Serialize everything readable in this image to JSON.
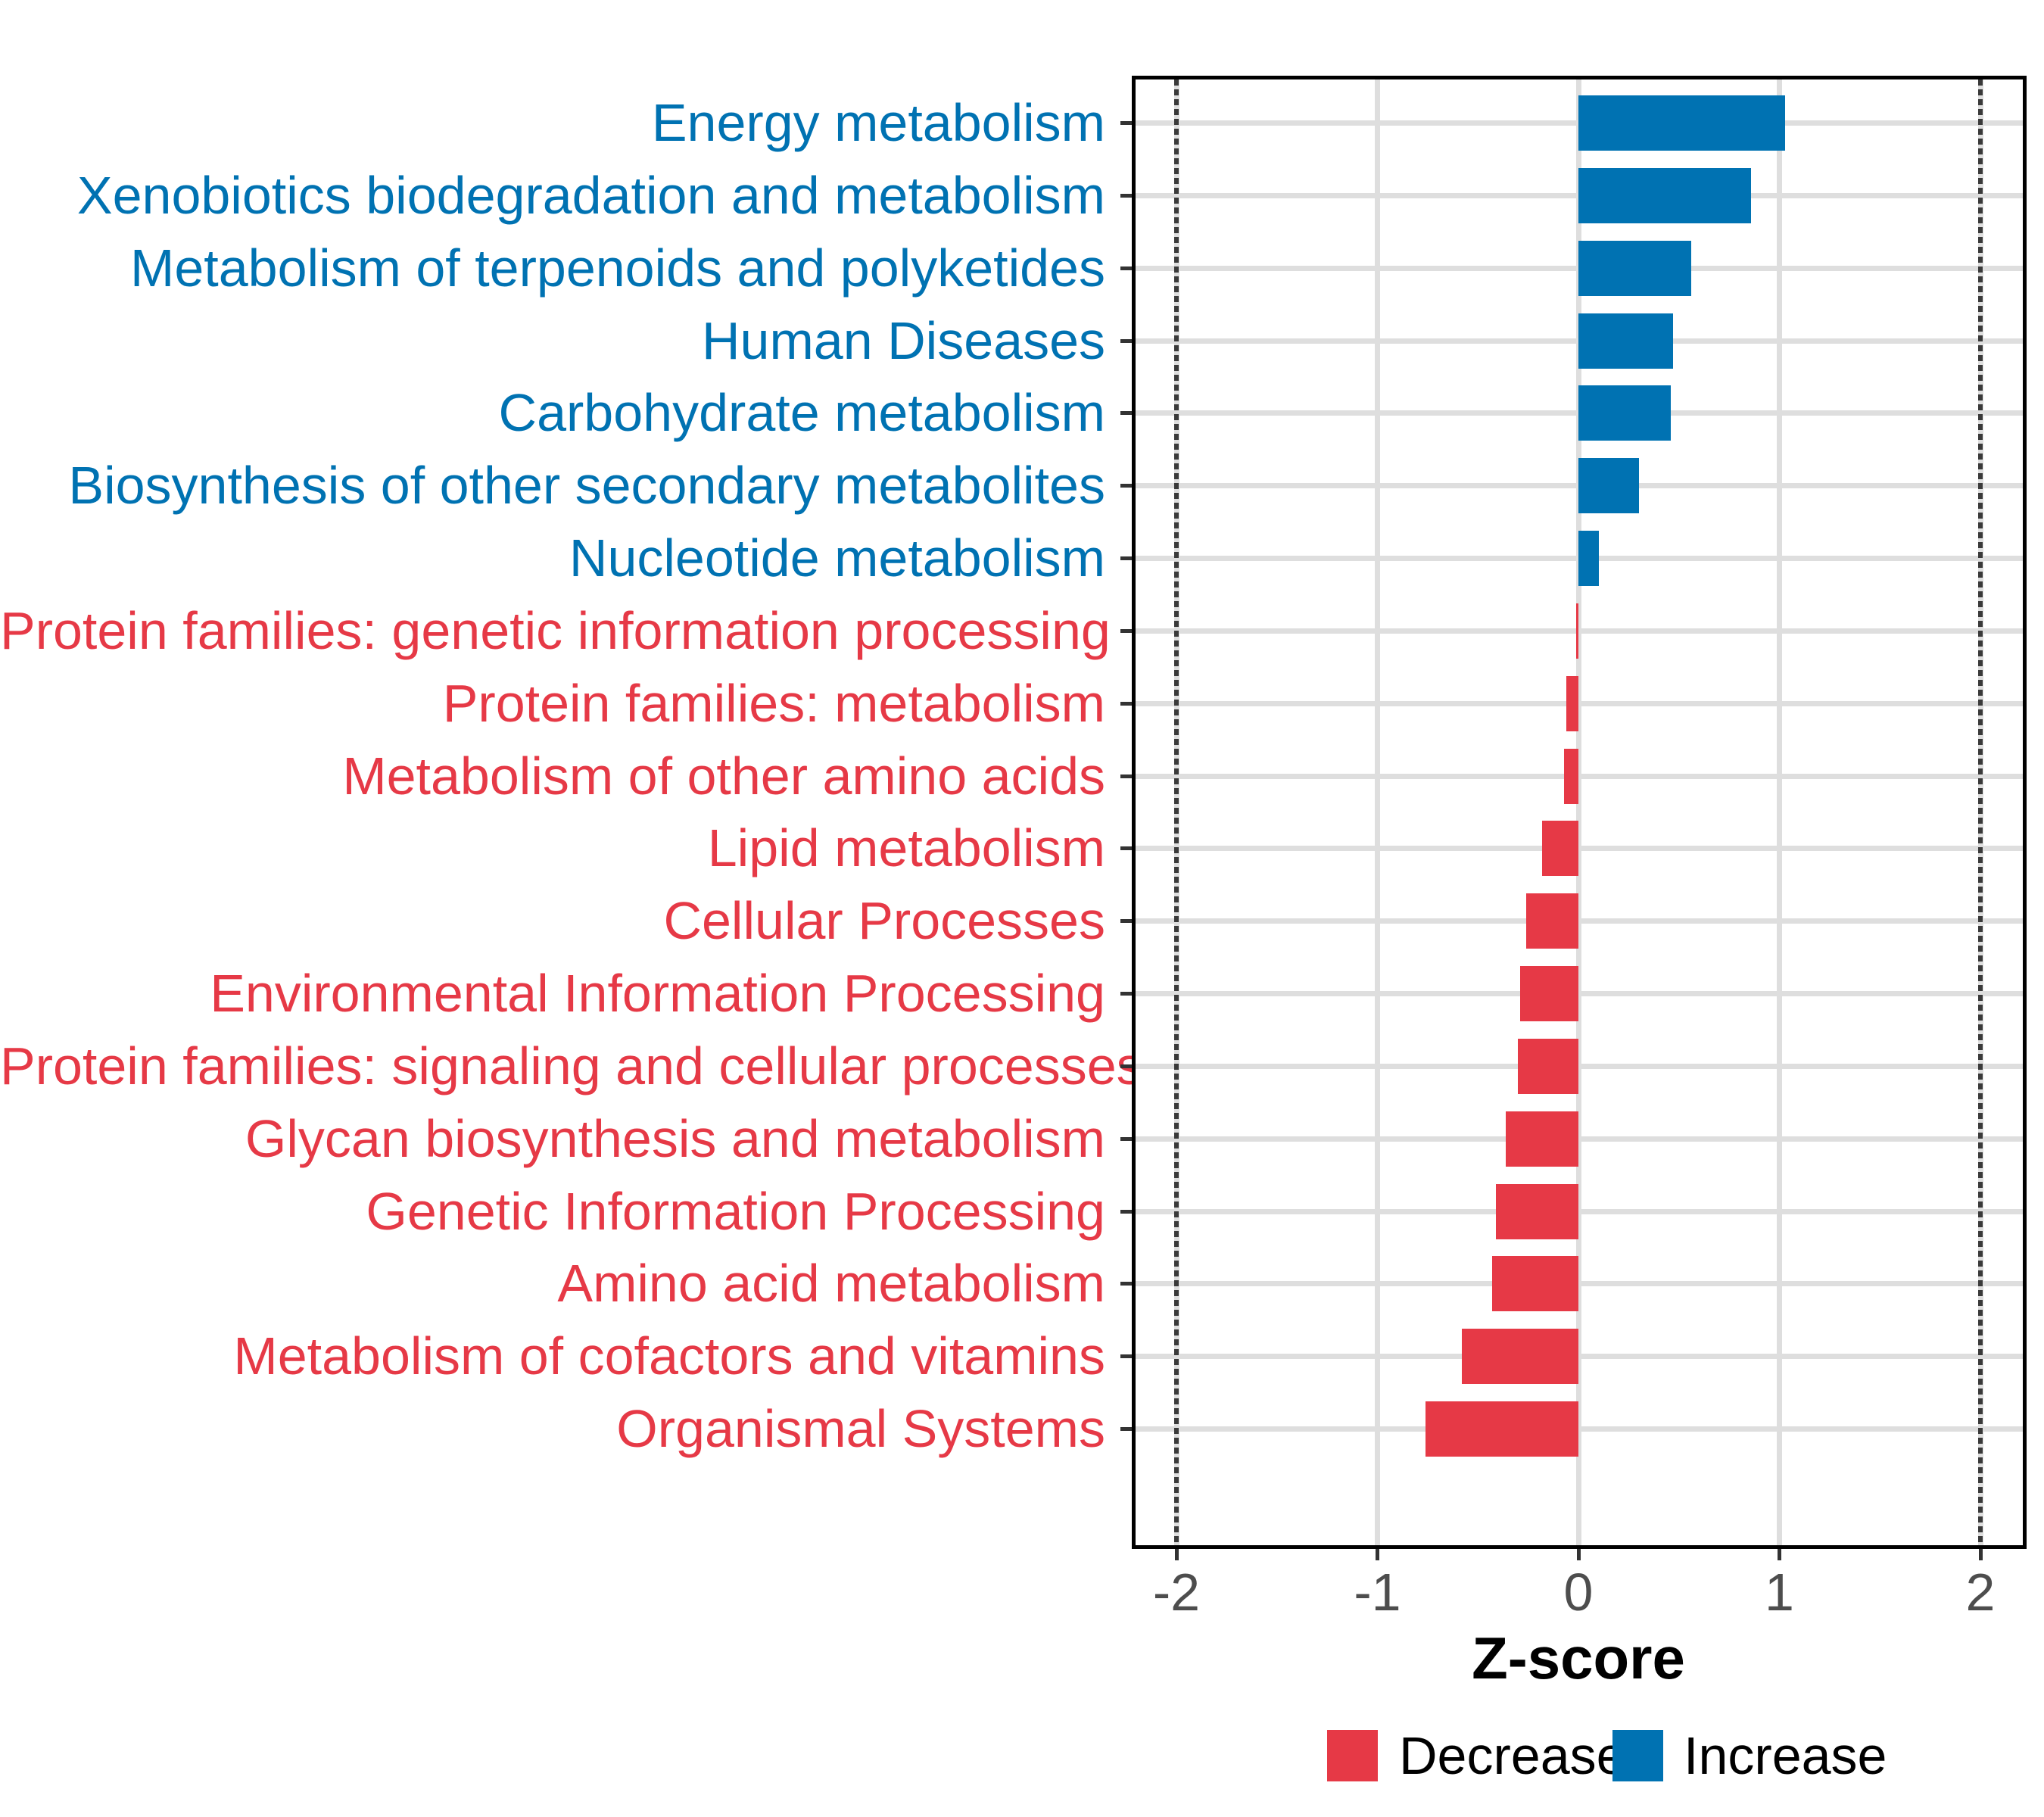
{
  "chart_data": {
    "type": "bar",
    "orientation": "horizontal",
    "xlabel": "Z-score",
    "xlim": [
      -2.2,
      2.23
    ],
    "x_ticks": [
      "-2",
      "-1",
      "0",
      "1",
      "2"
    ],
    "x_tick_values": [
      -2,
      -1,
      0,
      1,
      2
    ],
    "reference_lines": [
      -2,
      2
    ],
    "grid": true,
    "categories": [
      "Energy metabolism",
      "Xenobiotics biodegradation and metabolism",
      "Metabolism of terpenoids and polyketides",
      "Human Diseases",
      "Carbohydrate metabolism",
      "Biosynthesis of other secondary metabolites",
      "Nucleotide metabolism",
      "Protein families: genetic information processing",
      "Protein families: metabolism",
      "Metabolism of other amino acids",
      "Lipid metabolism",
      "Cellular Processes",
      "Environmental Information Processing",
      "Protein families: signaling and cellular processes",
      "Glycan biosynthesis and metabolism",
      "Genetic Information Processing",
      "Amino acid metabolism",
      "Metabolism of cofactors and vitamins",
      "Organismal Systems"
    ],
    "values": [
      1.03,
      0.86,
      0.56,
      0.47,
      0.46,
      0.3,
      0.1,
      -0.01,
      -0.06,
      -0.07,
      -0.18,
      -0.26,
      -0.29,
      -0.3,
      -0.36,
      -0.41,
      -0.43,
      -0.58,
      -0.76
    ],
    "legend": {
      "position": "bottom",
      "items": [
        {
          "label": "Decrease",
          "color": "#E63946"
        },
        {
          "label": "Increase",
          "color": "#0072B2"
        }
      ]
    },
    "colors": {
      "increase": "#0072B2",
      "decrease": "#E63946",
      "grid": "#DEDEDE",
      "reference_line": "#3A3A3A",
      "axis_text": "#4D4D4D",
      "tick": "#333333",
      "panel_border": "#000000"
    }
  }
}
